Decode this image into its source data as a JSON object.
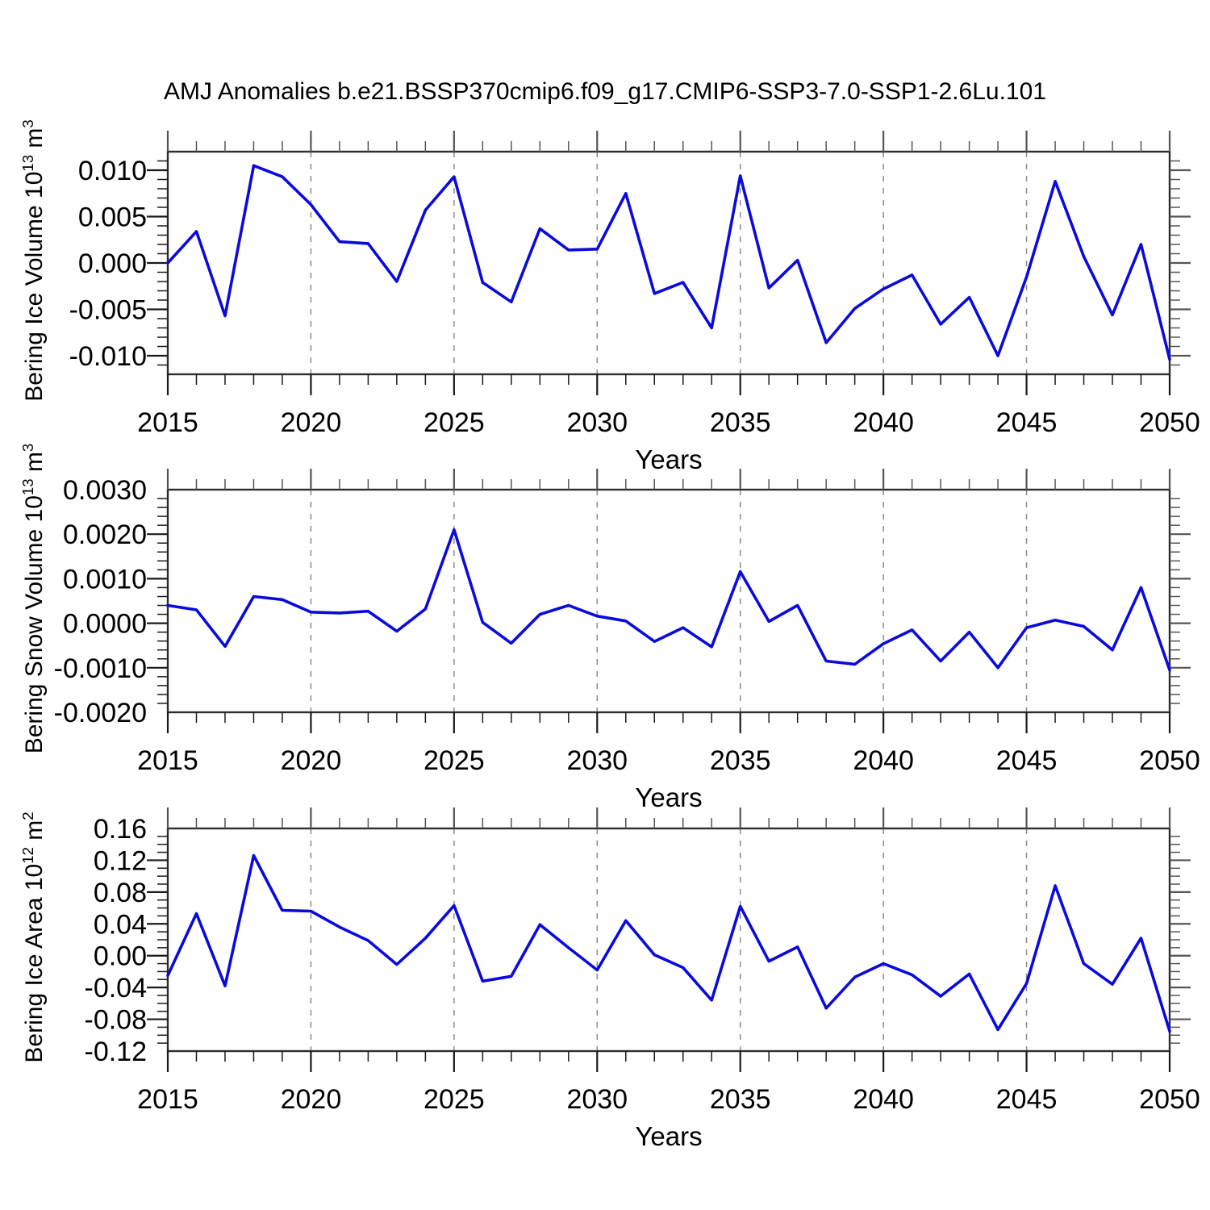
{
  "figure": {
    "title": "AMJ Anomalies b.e21.BSSP370cmip6.f09_g17.CMIP6-SSP3-7.0-SSP1-2.6Lu.101",
    "background_color": "#ffffff",
    "line_color": "#0a0ade",
    "grid_color": "#8c8c8c",
    "axis_color": "#2e2e2e",
    "tick_color": "#1a1a1a"
  },
  "chart_data": [
    {
      "type": "line",
      "id": "bering-ice-volume",
      "ylabel": "Bering Ice Volume 10^13 m^3",
      "ylabel_parts": {
        "base": "Bering Ice Volume 10",
        "exp": "13",
        "unit": " m",
        "unit_exp": "3"
      },
      "xlabel": "Years",
      "years": [
        2015,
        2016,
        2017,
        2018,
        2019,
        2020,
        2021,
        2022,
        2023,
        2024,
        2025,
        2026,
        2027,
        2028,
        2029,
        2030,
        2031,
        2032,
        2033,
        2034,
        2035,
        2036,
        2037,
        2038,
        2039,
        2040,
        2041,
        2042,
        2043,
        2044,
        2045,
        2046,
        2047,
        2048,
        2049,
        2050
      ],
      "values": [
        0.0,
        0.0034,
        -0.0057,
        0.0105,
        0.0093,
        0.0063,
        0.0023,
        0.0021,
        -0.002,
        0.0057,
        0.0093,
        -0.0021,
        -0.0042,
        0.0037,
        0.0014,
        0.0015,
        0.0075,
        -0.0033,
        -0.0021,
        -0.007,
        0.0094,
        -0.0027,
        0.0003,
        -0.0086,
        -0.0049,
        -0.0028,
        -0.0013,
        -0.0066,
        -0.0037,
        -0.01,
        -0.0015,
        0.0088,
        0.0007,
        -0.0056,
        0.002,
        -0.0104
      ],
      "ylim": [
        -0.012,
        0.012
      ],
      "y_ticks": [
        {
          "v": 0.01,
          "label": "0.010"
        },
        {
          "v": 0.005,
          "label": "0.005"
        },
        {
          "v": 0.0,
          "label": "0.000"
        },
        {
          "v": -0.005,
          "label": "-0.005"
        },
        {
          "v": -0.01,
          "label": "-0.010"
        }
      ],
      "y_minor_step": 0.001,
      "x_ticks": [
        {
          "v": 2015,
          "label": "2015"
        },
        {
          "v": 2020,
          "label": "2020"
        },
        {
          "v": 2025,
          "label": "2025"
        },
        {
          "v": 2030,
          "label": "2030"
        },
        {
          "v": 2035,
          "label": "2035"
        },
        {
          "v": 2040,
          "label": "2040"
        },
        {
          "v": 2045,
          "label": "2045"
        },
        {
          "v": 2050,
          "label": "2050"
        }
      ],
      "x_minor_step": 1,
      "xlim": [
        2015,
        2050
      ],
      "grid_x": [
        2020,
        2025,
        2030,
        2035,
        2040,
        2045
      ],
      "grid_style": "vertical-dashed",
      "legend": "none"
    },
    {
      "type": "line",
      "id": "bering-snow-volume",
      "ylabel": "Bering Snow Volume 10^13 m^3",
      "ylabel_parts": {
        "base": "Bering Snow Volume 10",
        "exp": "13",
        "unit": " m",
        "unit_exp": "3"
      },
      "xlabel": "Years",
      "years": [
        2015,
        2016,
        2017,
        2018,
        2019,
        2020,
        2021,
        2022,
        2023,
        2024,
        2025,
        2026,
        2027,
        2028,
        2029,
        2030,
        2031,
        2032,
        2033,
        2034,
        2035,
        2036,
        2037,
        2038,
        2039,
        2040,
        2041,
        2042,
        2043,
        2044,
        2045,
        2046,
        2047,
        2048,
        2049,
        2050
      ],
      "values": [
        0.0004,
        0.0003,
        -0.00052,
        0.0006,
        0.00053,
        0.00025,
        0.00023,
        0.00027,
        -0.00018,
        0.00032,
        0.0021,
        2e-05,
        -0.00045,
        0.0002,
        0.0004,
        0.00016,
        5e-05,
        -0.00041,
        -0.0001,
        -0.00053,
        0.00116,
        4e-05,
        0.0004,
        -0.00085,
        -0.00092,
        -0.00046,
        -0.00015,
        -0.00085,
        -0.0002,
        -0.001,
        -0.0001,
        7e-05,
        -7e-05,
        -0.0006,
        0.0008,
        -0.00105
      ],
      "ylim": [
        -0.002,
        0.003
      ],
      "y_ticks": [
        {
          "v": 0.003,
          "label": "0.0030"
        },
        {
          "v": 0.002,
          "label": "0.0020"
        },
        {
          "v": 0.001,
          "label": "0.0010"
        },
        {
          "v": 0.0,
          "label": "0.0000"
        },
        {
          "v": -0.001,
          "label": "-0.0010"
        },
        {
          "v": -0.002,
          "label": "-0.0020"
        }
      ],
      "y_minor_step": 0.0002,
      "x_ticks": [
        {
          "v": 2015,
          "label": "2015"
        },
        {
          "v": 2020,
          "label": "2020"
        },
        {
          "v": 2025,
          "label": "2025"
        },
        {
          "v": 2030,
          "label": "2030"
        },
        {
          "v": 2035,
          "label": "2035"
        },
        {
          "v": 2040,
          "label": "2040"
        },
        {
          "v": 2045,
          "label": "2045"
        },
        {
          "v": 2050,
          "label": "2050"
        }
      ],
      "x_minor_step": 1,
      "xlim": [
        2015,
        2050
      ],
      "grid_x": [
        2020,
        2025,
        2030,
        2035,
        2040,
        2045
      ],
      "grid_style": "vertical-dashed",
      "legend": "none"
    },
    {
      "type": "line",
      "id": "bering-ice-area",
      "ylabel": "Bering Ice Area 10^12 m^2",
      "ylabel_parts": {
        "base": "Bering Ice Area 10",
        "exp": "12",
        "unit": " m",
        "unit_exp": "2"
      },
      "xlabel": "Years",
      "years": [
        2015,
        2016,
        2017,
        2018,
        2019,
        2020,
        2021,
        2022,
        2023,
        2024,
        2025,
        2026,
        2027,
        2028,
        2029,
        2030,
        2031,
        2032,
        2033,
        2034,
        2035,
        2036,
        2037,
        2038,
        2039,
        2040,
        2041,
        2042,
        2043,
        2044,
        2045,
        2046,
        2047,
        2048,
        2049,
        2050
      ],
      "values": [
        -0.025,
        0.053,
        -0.038,
        0.126,
        0.057,
        0.056,
        0.036,
        0.019,
        -0.011,
        0.022,
        0.063,
        -0.032,
        -0.026,
        0.039,
        0.01,
        -0.018,
        0.044,
        0.001,
        -0.015,
        -0.056,
        0.062,
        -0.007,
        0.011,
        -0.066,
        -0.027,
        -0.01,
        -0.024,
        -0.051,
        -0.023,
        -0.093,
        -0.035,
        0.088,
        -0.01,
        -0.036,
        0.022,
        -0.095
      ],
      "ylim": [
        -0.12,
        0.16
      ],
      "y_ticks": [
        {
          "v": 0.16,
          "label": "0.16"
        },
        {
          "v": 0.12,
          "label": "0.12"
        },
        {
          "v": 0.08,
          "label": "0.08"
        },
        {
          "v": 0.04,
          "label": "0.04"
        },
        {
          "v": 0.0,
          "label": "0.00"
        },
        {
          "v": -0.04,
          "label": "-0.04"
        },
        {
          "v": -0.08,
          "label": "-0.08"
        },
        {
          "v": -0.12,
          "label": "-0.12"
        }
      ],
      "y_minor_step": 0.01,
      "x_ticks": [
        {
          "v": 2015,
          "label": "2015"
        },
        {
          "v": 2020,
          "label": "2020"
        },
        {
          "v": 2025,
          "label": "2025"
        },
        {
          "v": 2030,
          "label": "2030"
        },
        {
          "v": 2035,
          "label": "2035"
        },
        {
          "v": 2040,
          "label": "2040"
        },
        {
          "v": 2045,
          "label": "2045"
        },
        {
          "v": 2050,
          "label": "2050"
        }
      ],
      "x_minor_step": 1,
      "xlim": [
        2015,
        2050
      ],
      "grid_x": [
        2020,
        2025,
        2030,
        2035,
        2040,
        2045
      ],
      "grid_style": "vertical-dashed",
      "legend": "none"
    }
  ]
}
